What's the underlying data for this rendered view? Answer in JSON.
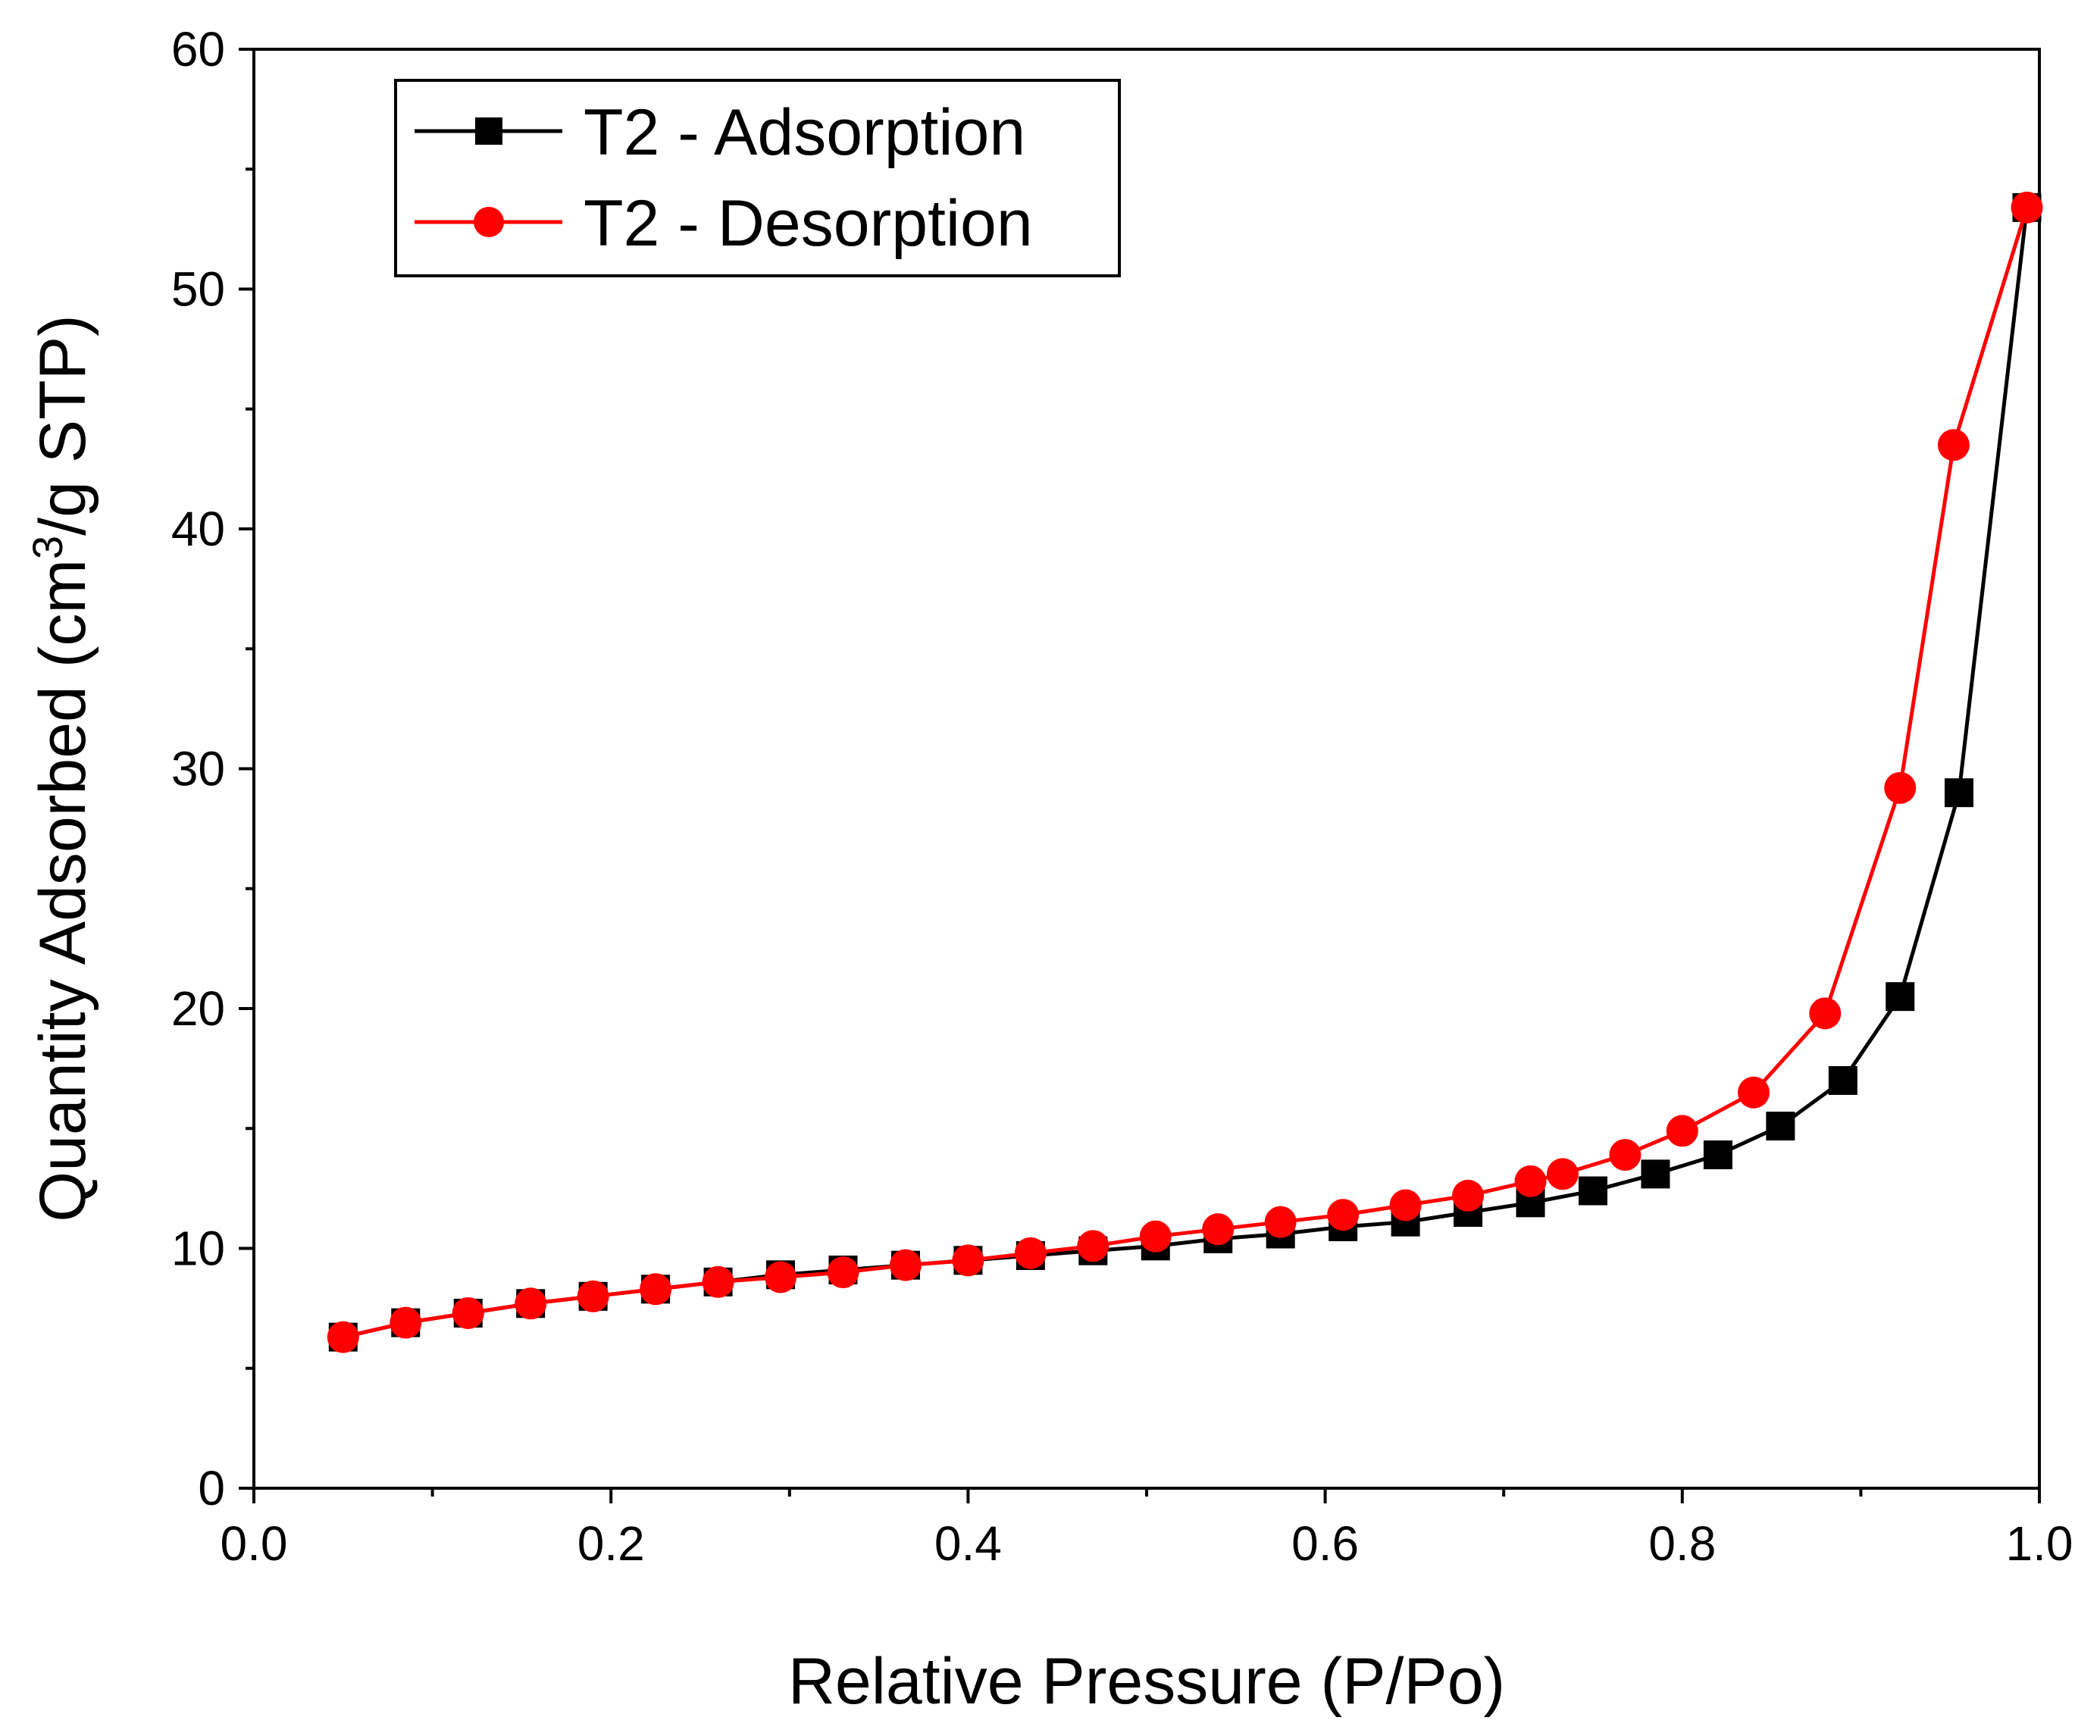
{
  "chart_data": {
    "type": "line",
    "title": "",
    "xlabel": "Relative Pressure (P/Po)",
    "ylabel": "Quantity Adsorbed (cm³/g STP)",
    "ylabel_parts": {
      "before": "Quantity Adsorbed (cm",
      "sup": "3",
      "after": "/g STP)"
    },
    "xlim": [
      0.0,
      1.0
    ],
    "ylim": [
      0,
      60
    ],
    "xticks": [
      "0.0",
      "0.2",
      "0.4",
      "0.6",
      "0.8",
      "1.0"
    ],
    "yticks": [
      "0",
      "10",
      "20",
      "30",
      "40",
      "50",
      "60"
    ],
    "xtick_values": [
      0.0,
      0.2,
      0.4,
      0.6,
      0.8,
      1.0
    ],
    "ytick_values": [
      0,
      10,
      20,
      30,
      40,
      50,
      60
    ],
    "grid": false,
    "legend_position": "top-left",
    "series": [
      {
        "name": "T2 - Adsorption",
        "color": "#000000",
        "marker": "square",
        "x": [
          0.05,
          0.085,
          0.12,
          0.155,
          0.19,
          0.225,
          0.26,
          0.295,
          0.33,
          0.365,
          0.4,
          0.435,
          0.47,
          0.505,
          0.54,
          0.575,
          0.61,
          0.645,
          0.68,
          0.715,
          0.75,
          0.785,
          0.82,
          0.855,
          0.89,
          0.922,
          0.955,
          0.993
        ],
        "y": [
          6.3,
          6.9,
          7.3,
          7.7,
          8.0,
          8.3,
          8.6,
          8.9,
          9.1,
          9.3,
          9.5,
          9.7,
          9.9,
          10.1,
          10.4,
          10.6,
          10.9,
          11.1,
          11.5,
          11.9,
          12.4,
          13.1,
          13.9,
          15.1,
          17.0,
          20.5,
          29.0,
          53.4
        ]
      },
      {
        "name": "T2 - Desorption",
        "color": "#ff0000",
        "marker": "circle",
        "x": [
          0.993,
          0.952,
          0.922,
          0.88,
          0.84,
          0.8,
          0.768,
          0.733,
          0.715,
          0.68,
          0.645,
          0.61,
          0.575,
          0.54,
          0.505,
          0.47,
          0.435,
          0.4,
          0.365,
          0.33,
          0.295,
          0.26,
          0.225,
          0.19,
          0.155,
          0.12,
          0.085,
          0.05
        ],
        "y": [
          53.4,
          43.5,
          29.2,
          19.8,
          16.5,
          14.9,
          13.9,
          13.1,
          12.8,
          12.2,
          11.8,
          11.4,
          11.1,
          10.8,
          10.5,
          10.1,
          9.8,
          9.5,
          9.3,
          9.0,
          8.8,
          8.6,
          8.3,
          8.0,
          7.7,
          7.3,
          6.9,
          6.3
        ]
      }
    ]
  }
}
